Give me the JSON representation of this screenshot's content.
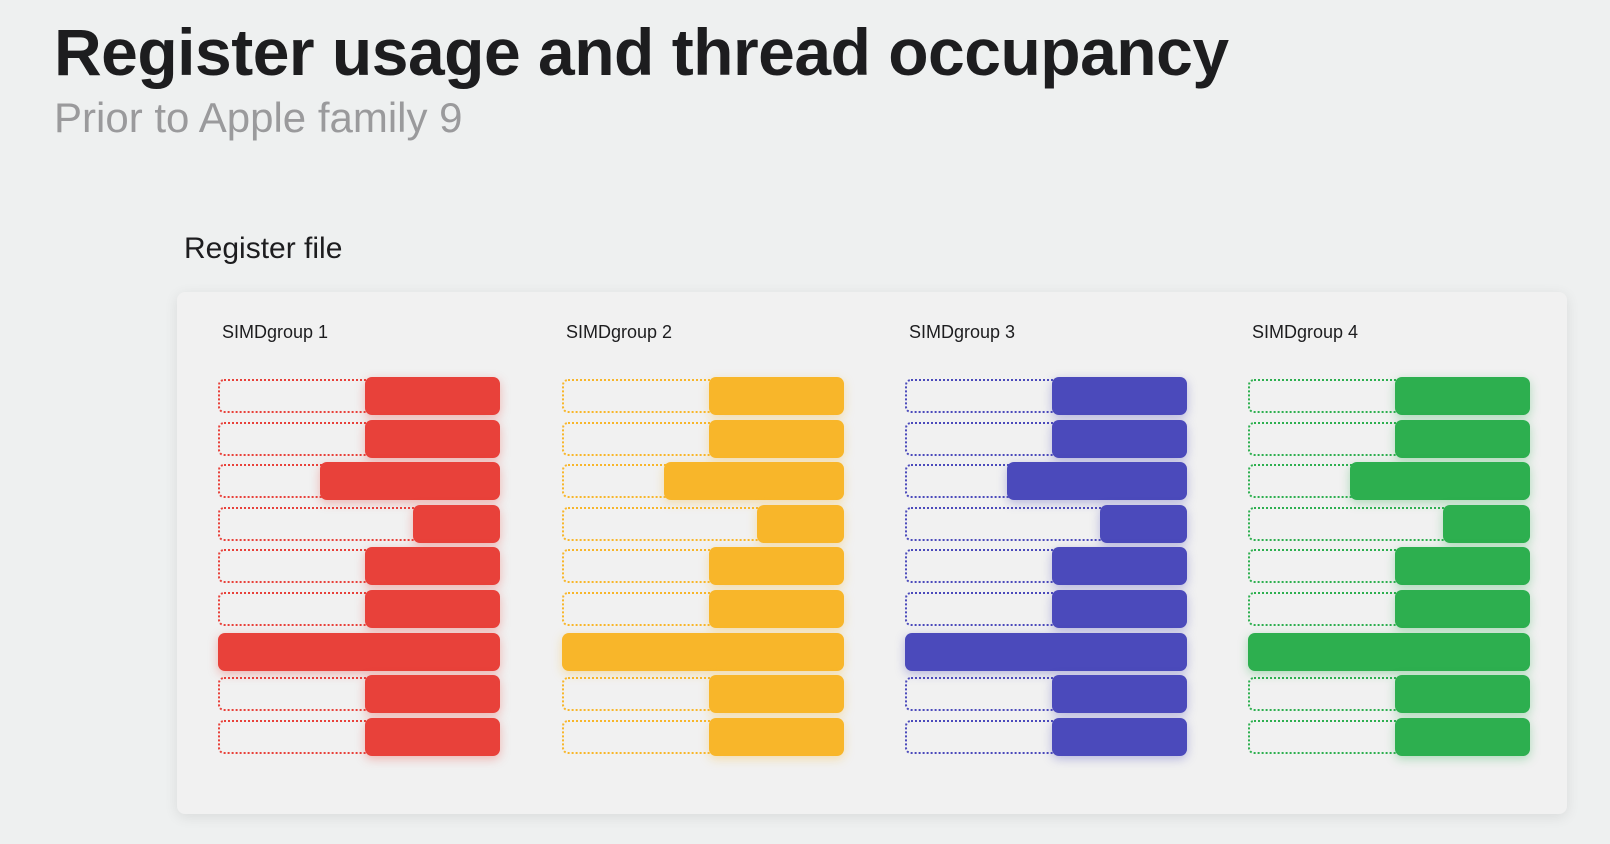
{
  "slide": {
    "title": "Register usage and thread occupancy",
    "subtitle": "Prior to Apple family 9"
  },
  "register_file": {
    "label": "Register file",
    "groups": [
      {
        "label": "SIMDgroup 1",
        "color": "#e8413a",
        "glow": "rgba(232,65,58,0.35)",
        "usage": [
          0.48,
          0.48,
          0.64,
          0.31,
          0.48,
          0.48,
          1.0,
          0.48,
          0.48
        ]
      },
      {
        "label": "SIMDgroup 2",
        "color": "#f8b62a",
        "glow": "rgba(248,182,42,0.35)",
        "usage": [
          0.48,
          0.48,
          0.64,
          0.31,
          0.48,
          0.48,
          1.0,
          0.48,
          0.48
        ]
      },
      {
        "label": "SIMDgroup 3",
        "color": "#4b4abb",
        "glow": "rgba(75,74,187,0.35)",
        "usage": [
          0.48,
          0.48,
          0.64,
          0.31,
          0.48,
          0.48,
          1.0,
          0.48,
          0.48
        ]
      },
      {
        "label": "SIMDgroup 4",
        "color": "#2daf4f",
        "glow": "rgba(45,175,79,0.35)",
        "usage": [
          0.48,
          0.48,
          0.64,
          0.31,
          0.48,
          0.48,
          1.0,
          0.48,
          0.48
        ]
      }
    ]
  }
}
